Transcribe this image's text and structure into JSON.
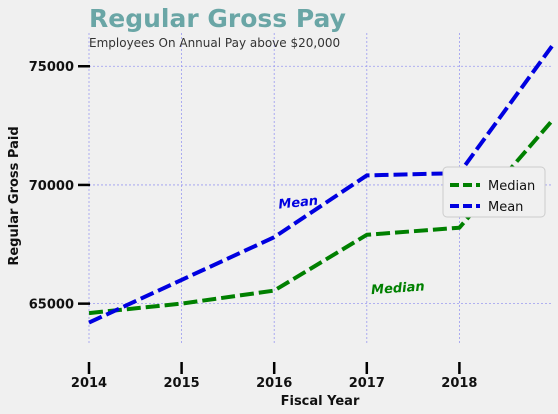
{
  "chart_data": {
    "type": "line",
    "title": "Regular Gross Pay",
    "subtitle": "Employees On Annual Pay above $20,000",
    "xlabel": "Fiscal Year",
    "ylabel": "Regular Gross Paid",
    "x": [
      2014,
      2015,
      2016,
      2017,
      2018,
      2019
    ],
    "xticks": [
      "2014",
      "2015",
      "2016",
      "2017",
      "2018"
    ],
    "yticks": [
      "65000",
      "70000",
      "75000"
    ],
    "xlim": [
      2014,
      2019
    ],
    "ylim": [
      63300,
      76400
    ],
    "grid": true,
    "legend_position": "right",
    "series": [
      {
        "name": "Median",
        "color": "#008000",
        "style": "dashed",
        "values": [
          64600,
          65000,
          65550,
          67900,
          68200,
          72700
        ]
      },
      {
        "name": "Mean",
        "color": "#0000e0",
        "style": "dashed",
        "values": [
          64200,
          66000,
          67800,
          70400,
          70500,
          75850
        ]
      }
    ],
    "annotations": [
      {
        "text": "Mean",
        "x": 2016.05,
        "y": 69000,
        "rotation": -6,
        "color": "#0000e0"
      },
      {
        "text": "Median",
        "x": 2017.05,
        "y": 65400,
        "rotation": -4,
        "color": "#008000"
      }
    ]
  }
}
